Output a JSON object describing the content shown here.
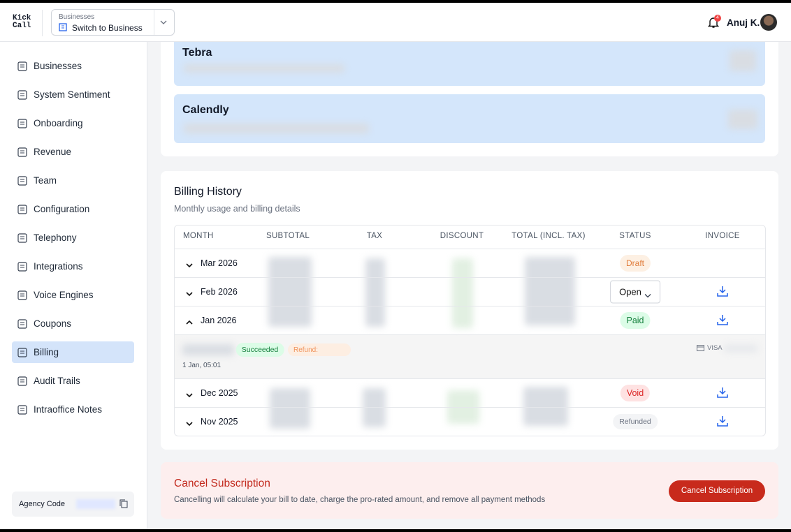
{
  "header": {
    "logo_line1": "Kick",
    "logo_line2": "Call",
    "switcher_label": "Businesses",
    "switcher_value": "Switch to Business",
    "notification_count": "4",
    "user_name": "Anuj K."
  },
  "sidebar": {
    "items": [
      "Businesses",
      "System Sentiment",
      "Onboarding",
      "Revenue",
      "Team",
      "Configuration",
      "Telephony",
      "Integrations",
      "Voice Engines",
      "Coupons",
      "Billing",
      "Audit Trails",
      "Intraoffice Notes"
    ],
    "active": 10,
    "agency_code_label": "Agency Code"
  },
  "integrations": [
    "Tebra",
    "Calendly"
  ],
  "billing": {
    "title": "Billing History",
    "subtitle": "Monthly usage and billing details",
    "columns": [
      "MONTH",
      "SUBTOTAL",
      "TAX",
      "DISCOUNT",
      "TOTAL (INCL. TAX)",
      "STATUS",
      "INVOICE"
    ],
    "rows": [
      {
        "month": "Mar 2026",
        "status": "Draft"
      },
      {
        "month": "Feb 2026",
        "status": "Open"
      },
      {
        "month": "Jan 2026",
        "status": "Paid",
        "detail": {
          "payment_status": "Succeeded",
          "refund_label": "Refund:",
          "date": "1 Jan, 05:01",
          "card": "VISA"
        }
      },
      {
        "month": "Dec 2025",
        "status": "Void"
      },
      {
        "month": "Nov 2025",
        "status": "Refunded"
      }
    ]
  },
  "cancel": {
    "title": "Cancel Subscription",
    "description": "Cancelling will calculate your bill to date, charge the pro-rated amount, and remove all payment methods",
    "button": "Cancel Subscription"
  }
}
